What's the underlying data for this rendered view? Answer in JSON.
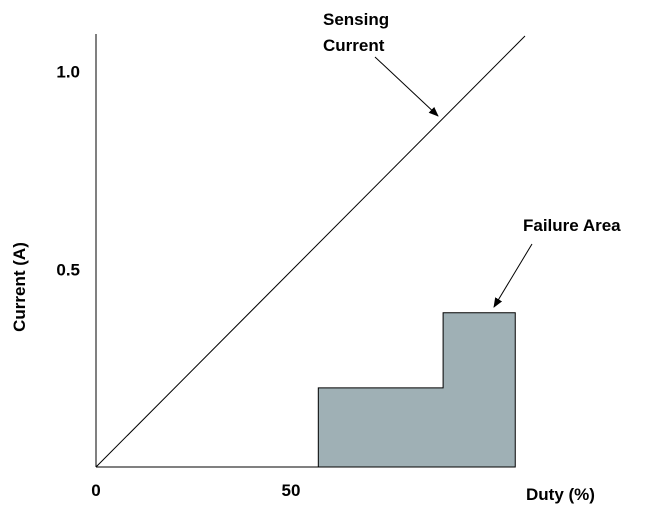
{
  "chart_data": {
    "type": "line",
    "xlabel": "Duty (%)",
    "ylabel": "Current (A)",
    "x_ticks": [
      {
        "value": 0,
        "label": "0"
      },
      {
        "value": 50,
        "label": "50"
      }
    ],
    "y_ticks": [
      {
        "value": 0.5,
        "label": "0.5"
      },
      {
        "value": 1.0,
        "label": "1.0"
      }
    ],
    "xlim": [
      0,
      110
    ],
    "ylim": [
      0,
      1.09
    ],
    "grid": false,
    "legend": "none",
    "series": [
      {
        "name": "Sensing Current",
        "x": [
          0,
          110
        ],
        "y": [
          0,
          1.09
        ]
      }
    ],
    "failure_area": {
      "label": "Failure Area",
      "color": "#9fb0b5",
      "steps": [
        {
          "x_start": 57,
          "x_end": 89,
          "y": 0.2
        },
        {
          "x_start": 89,
          "x_end": 107.5,
          "y": 0.39
        }
      ]
    },
    "annotations": [
      {
        "text_lines": [
          "Sensing",
          "Current"
        ],
        "points_to": "series-line"
      },
      {
        "text_lines": [
          "Failure Area"
        ],
        "points_to": "failure-area"
      }
    ]
  }
}
